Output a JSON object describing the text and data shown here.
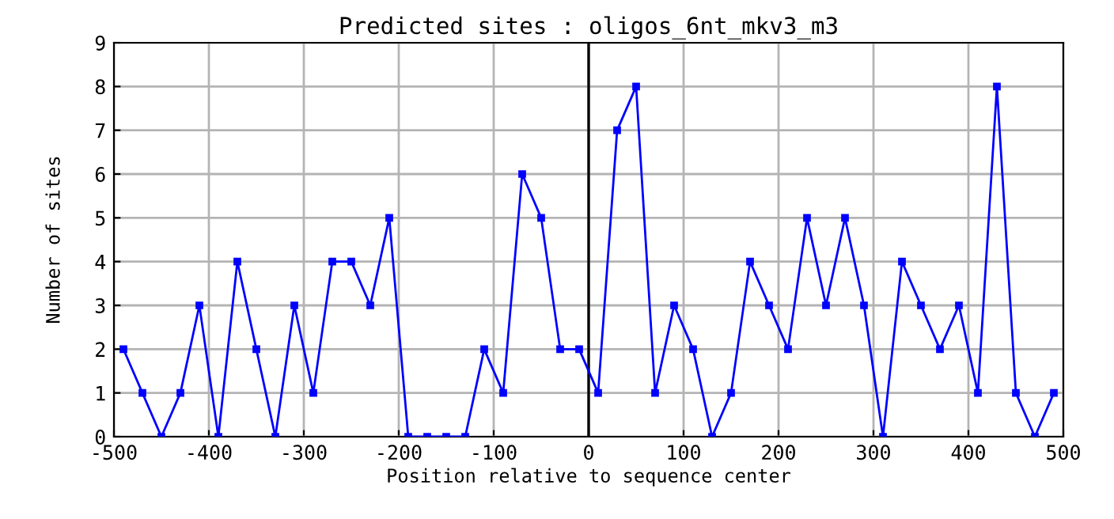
{
  "chart_data": {
    "type": "line",
    "title": "Predicted sites : oligos_6nt_mkv3_m3",
    "xlabel": "Position relative to sequence center",
    "ylabel": "Number of sites",
    "x": [
      -490,
      -470,
      -450,
      -430,
      -410,
      -390,
      -370,
      -350,
      -330,
      -310,
      -290,
      -270,
      -250,
      -230,
      -210,
      -190,
      -170,
      -150,
      -130,
      -110,
      -90,
      -70,
      -50,
      -30,
      -10,
      10,
      30,
      50,
      70,
      90,
      110,
      130,
      150,
      170,
      190,
      210,
      230,
      250,
      270,
      290,
      310,
      330,
      350,
      370,
      390,
      410,
      430,
      450,
      470,
      490
    ],
    "series": [
      {
        "color": "#0000ff",
        "values": [
          2,
          1,
          0,
          1,
          3,
          0,
          4,
          2,
          0,
          3,
          1,
          4,
          4,
          3,
          5,
          0,
          0,
          0,
          0,
          2,
          1,
          6,
          5,
          2,
          2,
          1,
          7,
          8,
          1,
          3,
          2,
          0,
          1,
          4,
          3,
          2,
          5,
          3,
          5,
          3,
          0,
          4,
          3,
          2,
          3,
          1,
          8,
          1,
          0,
          1
        ]
      }
    ],
    "xlim": [
      -500,
      500
    ],
    "xticks": [
      -500,
      -400,
      -300,
      -200,
      -100,
      0,
      100,
      200,
      300,
      400,
      500
    ],
    "ylim": [
      0,
      9
    ],
    "yticks": [
      0,
      1,
      2,
      3,
      4,
      5,
      6,
      7,
      8,
      9
    ],
    "ref_lines": [
      {
        "axis": "x",
        "value": 0,
        "color": "#000000"
      }
    ],
    "grid": true,
    "marker": "square",
    "line_style": "solid"
  }
}
